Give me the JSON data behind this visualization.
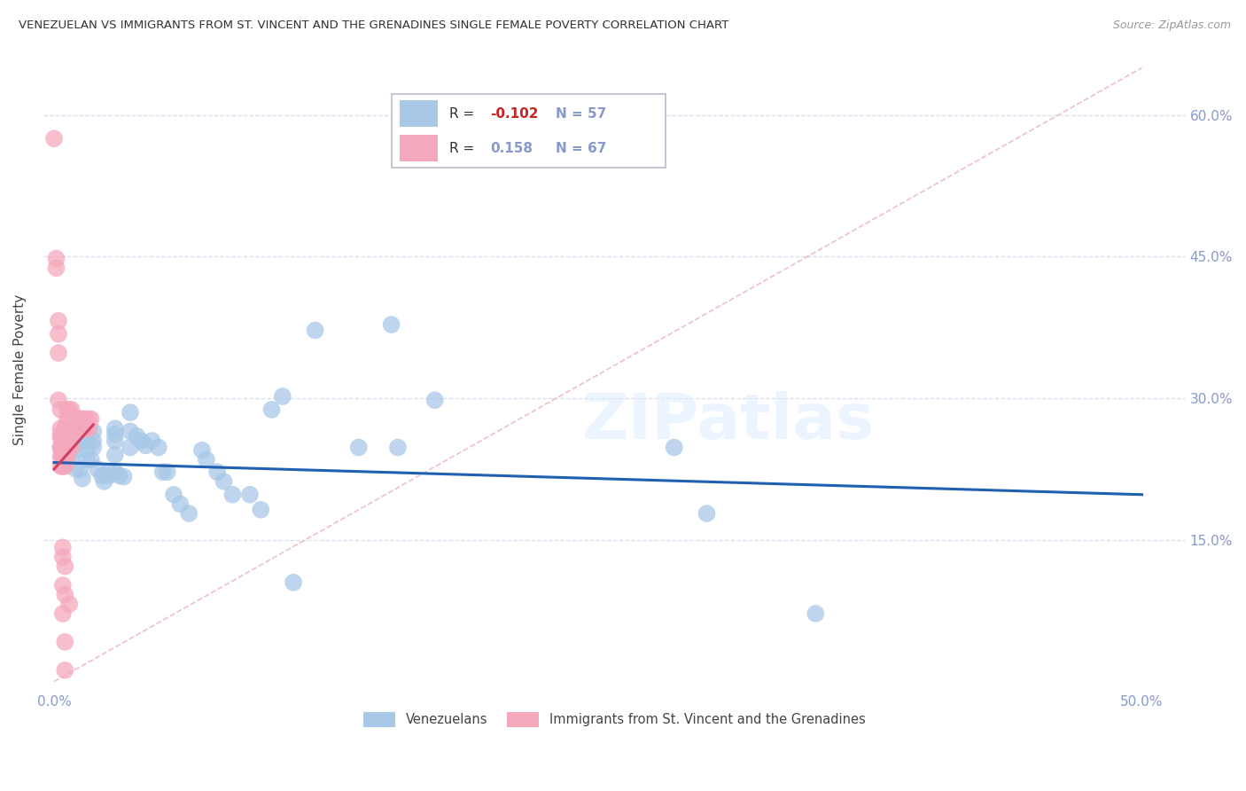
{
  "title": "VENEZUELAN VS IMMIGRANTS FROM ST. VINCENT AND THE GRENADINES SINGLE FEMALE POVERTY CORRELATION CHART",
  "source": "Source: ZipAtlas.com",
  "ylabel": "Single Female Poverty",
  "ytick_vals": [
    0.15,
    0.3,
    0.45,
    0.6
  ],
  "ytick_labels": [
    "15.0%",
    "30.0%",
    "45.0%",
    "60.0%"
  ],
  "xtick_vals": [
    0.0,
    0.1,
    0.2,
    0.3,
    0.4,
    0.5
  ],
  "xtick_labels": [
    "0.0%",
    "",
    "",
    "",
    "",
    "50.0%"
  ],
  "xlim": [
    -0.005,
    0.52
  ],
  "ylim": [
    -0.01,
    0.67
  ],
  "legend_r_blue": "-0.102",
  "legend_n_blue": "57",
  "legend_r_pink": "0.158",
  "legend_n_pink": "67",
  "legend_label_blue": "Venezuelans",
  "legend_label_pink": "Immigrants from St. Vincent and the Grenadines",
  "blue_color": "#a8c8e8",
  "pink_color": "#f5a8bc",
  "diag_color": "#e8b0c0",
  "trend_blue_color": "#2060b0",
  "trend_pink_color": "#d04060",
  "axis_color": "#8899cc",
  "grid_color": "#d8ddf0",
  "blue_scatter": [
    [
      0.005,
      0.255
    ],
    [
      0.007,
      0.245
    ],
    [
      0.008,
      0.235
    ],
    [
      0.01,
      0.225
    ],
    [
      0.01,
      0.245
    ],
    [
      0.012,
      0.255
    ],
    [
      0.012,
      0.225
    ],
    [
      0.013,
      0.215
    ],
    [
      0.015,
      0.255
    ],
    [
      0.015,
      0.245
    ],
    [
      0.015,
      0.235
    ],
    [
      0.017,
      0.235
    ],
    [
      0.018,
      0.265
    ],
    [
      0.018,
      0.255
    ],
    [
      0.018,
      0.248
    ],
    [
      0.02,
      0.225
    ],
    [
      0.022,
      0.218
    ],
    [
      0.023,
      0.212
    ],
    [
      0.025,
      0.222
    ],
    [
      0.025,
      0.218
    ],
    [
      0.028,
      0.268
    ],
    [
      0.028,
      0.262
    ],
    [
      0.028,
      0.255
    ],
    [
      0.028,
      0.24
    ],
    [
      0.028,
      0.222
    ],
    [
      0.03,
      0.218
    ],
    [
      0.032,
      0.217
    ],
    [
      0.035,
      0.285
    ],
    [
      0.035,
      0.265
    ],
    [
      0.035,
      0.248
    ],
    [
      0.038,
      0.26
    ],
    [
      0.04,
      0.255
    ],
    [
      0.042,
      0.25
    ],
    [
      0.045,
      0.255
    ],
    [
      0.048,
      0.248
    ],
    [
      0.05,
      0.222
    ],
    [
      0.052,
      0.222
    ],
    [
      0.055,
      0.198
    ],
    [
      0.058,
      0.188
    ],
    [
      0.062,
      0.178
    ],
    [
      0.068,
      0.245
    ],
    [
      0.07,
      0.235
    ],
    [
      0.075,
      0.222
    ],
    [
      0.078,
      0.212
    ],
    [
      0.082,
      0.198
    ],
    [
      0.09,
      0.198
    ],
    [
      0.095,
      0.182
    ],
    [
      0.1,
      0.288
    ],
    [
      0.105,
      0.302
    ],
    [
      0.11,
      0.105
    ],
    [
      0.12,
      0.372
    ],
    [
      0.14,
      0.248
    ],
    [
      0.155,
      0.378
    ],
    [
      0.158,
      0.248
    ],
    [
      0.175,
      0.298
    ],
    [
      0.285,
      0.248
    ],
    [
      0.3,
      0.178
    ],
    [
      0.35,
      0.072
    ]
  ],
  "pink_scatter": [
    [
      0.0,
      0.575
    ],
    [
      0.001,
      0.448
    ],
    [
      0.001,
      0.438
    ],
    [
      0.002,
      0.382
    ],
    [
      0.002,
      0.368
    ],
    [
      0.002,
      0.348
    ],
    [
      0.002,
      0.298
    ],
    [
      0.003,
      0.288
    ],
    [
      0.003,
      0.268
    ],
    [
      0.003,
      0.258
    ],
    [
      0.003,
      0.248
    ],
    [
      0.003,
      0.248
    ],
    [
      0.003,
      0.238
    ],
    [
      0.003,
      0.228
    ],
    [
      0.003,
      0.262
    ],
    [
      0.004,
      0.258
    ],
    [
      0.004,
      0.248
    ],
    [
      0.004,
      0.242
    ],
    [
      0.004,
      0.238
    ],
    [
      0.004,
      0.258
    ],
    [
      0.004,
      0.248
    ],
    [
      0.004,
      0.238
    ],
    [
      0.004,
      0.228
    ],
    [
      0.004,
      0.142
    ],
    [
      0.004,
      0.102
    ],
    [
      0.004,
      0.248
    ],
    [
      0.004,
      0.238
    ],
    [
      0.004,
      0.228
    ],
    [
      0.004,
      0.132
    ],
    [
      0.004,
      0.072
    ],
    [
      0.005,
      0.268
    ],
    [
      0.005,
      0.258
    ],
    [
      0.005,
      0.248
    ],
    [
      0.005,
      0.238
    ],
    [
      0.005,
      0.228
    ],
    [
      0.005,
      0.122
    ],
    [
      0.005,
      0.092
    ],
    [
      0.005,
      0.042
    ],
    [
      0.005,
      0.012
    ],
    [
      0.005,
      0.268
    ],
    [
      0.006,
      0.258
    ],
    [
      0.006,
      0.248
    ],
    [
      0.006,
      0.238
    ],
    [
      0.006,
      0.288
    ],
    [
      0.006,
      0.278
    ],
    [
      0.007,
      0.258
    ],
    [
      0.007,
      0.248
    ],
    [
      0.007,
      0.082
    ],
    [
      0.007,
      0.288
    ],
    [
      0.007,
      0.278
    ],
    [
      0.008,
      0.258
    ],
    [
      0.008,
      0.248
    ],
    [
      0.008,
      0.288
    ],
    [
      0.009,
      0.268
    ],
    [
      0.01,
      0.268
    ],
    [
      0.01,
      0.268
    ],
    [
      0.011,
      0.278
    ],
    [
      0.011,
      0.268
    ],
    [
      0.012,
      0.278
    ],
    [
      0.012,
      0.268
    ],
    [
      0.013,
      0.278
    ],
    [
      0.013,
      0.268
    ],
    [
      0.014,
      0.278
    ],
    [
      0.015,
      0.268
    ],
    [
      0.016,
      0.278
    ],
    [
      0.016,
      0.268
    ],
    [
      0.017,
      0.278
    ]
  ],
  "blue_trend_x": [
    0.0,
    0.5
  ],
  "blue_trend_y": [
    0.232,
    0.198
  ],
  "pink_trend_x": [
    0.0,
    0.018
  ],
  "pink_trend_y": [
    0.225,
    0.272
  ],
  "watermark": "ZIPatlas"
}
